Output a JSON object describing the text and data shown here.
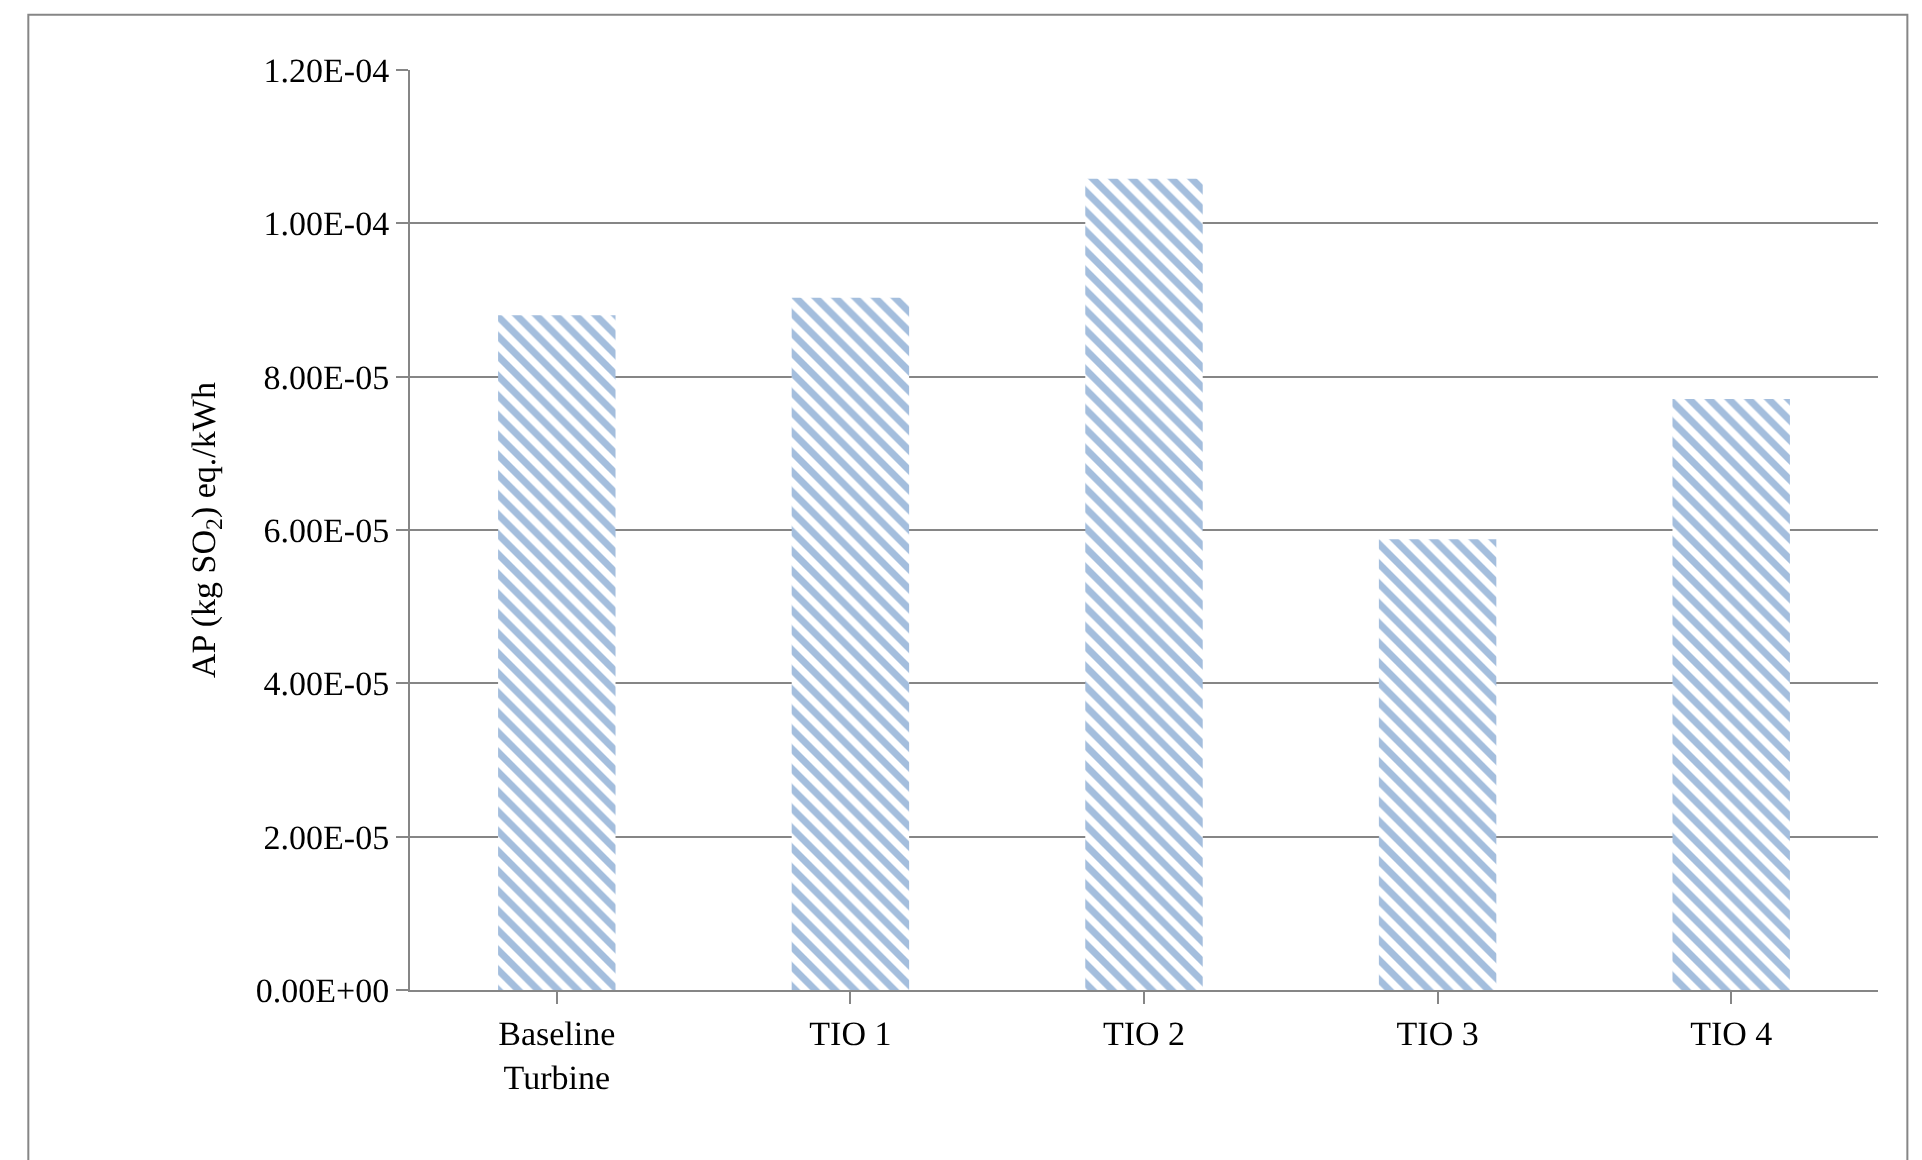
{
  "chart_data": {
    "type": "bar",
    "ylabel": "AP (kg SO$_{2}$) eq./kWh",
    "categories": [
      "Baseline Turbine",
      "TIO 1",
      "TIO 2",
      "TIO 3",
      "TIO 4"
    ],
    "values": [
      8.8e-05,
      9.03e-05,
      0.0001058,
      5.88e-05,
      7.71e-05
    ],
    "color": "#4a7ebb",
    "ylim": [
      0,
      0.00012
    ],
    "yticks": [
      {
        "value": 0,
        "label": "0.00E+00"
      },
      {
        "value": 2e-05,
        "label": "2.00E-05"
      },
      {
        "value": 4e-05,
        "label": "4.00E-05"
      },
      {
        "value": 6e-05,
        "label": "6.00E-05"
      },
      {
        "value": 8e-05,
        "label": "8.00E-05"
      },
      {
        "value": 0.0001,
        "label": "1.00E-04"
      },
      {
        "value": 0.00012,
        "label": "1.20E-04"
      }
    ],
    "grid": "y",
    "legend": false
  }
}
